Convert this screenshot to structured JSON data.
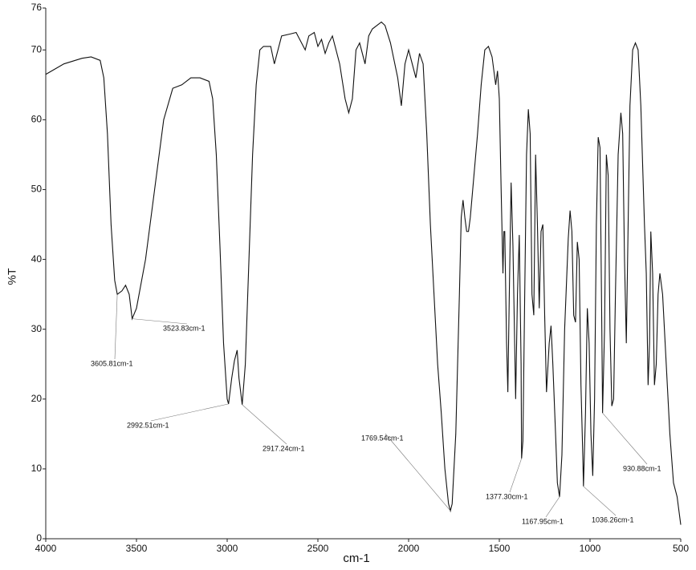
{
  "chart_data": {
    "type": "line",
    "x_label": "cm-1",
    "y_label": "%T",
    "xlim": [
      4000,
      500
    ],
    "ylim": [
      0,
      76
    ],
    "xticks": [
      4000,
      3500,
      3000,
      2500,
      2000,
      1500,
      1000,
      500
    ],
    "yticks": [
      0,
      10,
      20,
      30,
      40,
      50,
      60,
      70,
      76
    ],
    "color": "#111111",
    "x": [
      4000,
      3900,
      3800,
      3750,
      3700,
      3680,
      3660,
      3640,
      3620,
      3605.81,
      3580,
      3560,
      3540,
      3523.83,
      3500,
      3450,
      3400,
      3350,
      3300,
      3250,
      3200,
      3150,
      3100,
      3080,
      3060,
      3040,
      3020,
      3000,
      2992.51,
      2975,
      2960,
      2945,
      2935,
      2917.24,
      2900,
      2880,
      2860,
      2840,
      2820,
      2800,
      2760,
      2740,
      2720,
      2700,
      2650,
      2620,
      2600,
      2570,
      2550,
      2520,
      2500,
      2480,
      2460,
      2440,
      2420,
      2400,
      2380,
      2350,
      2330,
      2310,
      2290,
      2270,
      2240,
      2220,
      2200,
      2150,
      2130,
      2100,
      2060,
      2040,
      2020,
      2000,
      1980,
      1960,
      1940,
      1920,
      1900,
      1880,
      1860,
      1840,
      1820,
      1800,
      1780,
      1769.54,
      1760,
      1740,
      1720,
      1710,
      1700,
      1690,
      1680,
      1670,
      1660,
      1640,
      1620,
      1600,
      1580,
      1560,
      1540,
      1520,
      1510,
      1500,
      1490,
      1480,
      1475,
      1470,
      1460,
      1453,
      1445,
      1435,
      1425,
      1410,
      1400,
      1390,
      1380,
      1377.3,
      1370,
      1360,
      1350,
      1340,
      1330,
      1320,
      1310,
      1300,
      1290,
      1280,
      1270,
      1260,
      1250,
      1240,
      1225,
      1215,
      1205,
      1190,
      1180,
      1167.95,
      1155,
      1140,
      1120,
      1110,
      1100,
      1090,
      1080,
      1070,
      1060,
      1050,
      1040,
      1036.26,
      1025,
      1015,
      1005,
      995,
      985,
      975,
      965,
      955,
      945,
      935,
      930.88,
      920,
      910,
      900,
      890,
      880,
      870,
      860,
      845,
      830,
      820,
      810,
      800,
      790,
      780,
      765,
      750,
      735,
      720,
      700,
      690,
      680,
      672,
      665,
      655,
      645,
      635,
      625,
      615,
      600,
      580,
      560,
      540,
      520,
      510,
      500
    ],
    "values": [
      66.5,
      68,
      68.8,
      69,
      68.5,
      66,
      58,
      45,
      37,
      35,
      35.5,
      36.3,
      35,
      31.5,
      33,
      40,
      50,
      60,
      64.5,
      65,
      66,
      66,
      65.5,
      63,
      55,
      42,
      28,
      20,
      19.3,
      23,
      25.5,
      27,
      23,
      19.2,
      25,
      40,
      55,
      65,
      70,
      70.5,
      70.5,
      68,
      70,
      72,
      72.3,
      72.5,
      71.5,
      70,
      72,
      72.5,
      70.5,
      71.5,
      69.5,
      71,
      72,
      70,
      68,
      63,
      61,
      63,
      70,
      71,
      68,
      72,
      73,
      74,
      73.5,
      71,
      66,
      62,
      68,
      70,
      68,
      66,
      69.5,
      68,
      58,
      45,
      35,
      25,
      18,
      10,
      5,
      4,
      5,
      15,
      35,
      46,
      48.5,
      46,
      44,
      44,
      46,
      52,
      58,
      65,
      70,
      70.5,
      69,
      65,
      67,
      63,
      50,
      38,
      44,
      44,
      28,
      21,
      35,
      51,
      42,
      20,
      35,
      43.5,
      25,
      11.5,
      14,
      35,
      55,
      61.5,
      58,
      35,
      32,
      55,
      45,
      33,
      44,
      45,
      32,
      21,
      28,
      30.5,
      25,
      15,
      8,
      6,
      12,
      30,
      43,
      47,
      44,
      32,
      31,
      42.5,
      40,
      22,
      12,
      7.5,
      18,
      33,
      28,
      15,
      9,
      20,
      45,
      57.5,
      56,
      30,
      18,
      30,
      55,
      52,
      30,
      19,
      20,
      35,
      55,
      61,
      58,
      40,
      28,
      45,
      62,
      70,
      71,
      70,
      62,
      45,
      38,
      22,
      28,
      44,
      38,
      22,
      25,
      35,
      38,
      35,
      25,
      15,
      8,
      6,
      4,
      2
    ],
    "annotations": [
      {
        "label": "3605.81cm-1",
        "x": 3605.81,
        "y": 35
      },
      {
        "label": "3523.83cm-1",
        "x": 3523.83,
        "y": 31.5
      },
      {
        "label": "2992.51cm-1",
        "x": 2992.51,
        "y": 19.3
      },
      {
        "label": "2917.24cm-1",
        "x": 2917.24,
        "y": 19.2
      },
      {
        "label": "1769.54cm-1",
        "x": 1769.54,
        "y": 4
      },
      {
        "label": "1377.30cm-1",
        "x": 1377.3,
        "y": 11.5
      },
      {
        "label": "1167.95cm-1",
        "x": 1167.95,
        "y": 6
      },
      {
        "label": "1036.26cm-1",
        "x": 1036.26,
        "y": 7.5
      },
      {
        "label": "930.88cm-1",
        "x": 930.88,
        "y": 18
      }
    ]
  }
}
